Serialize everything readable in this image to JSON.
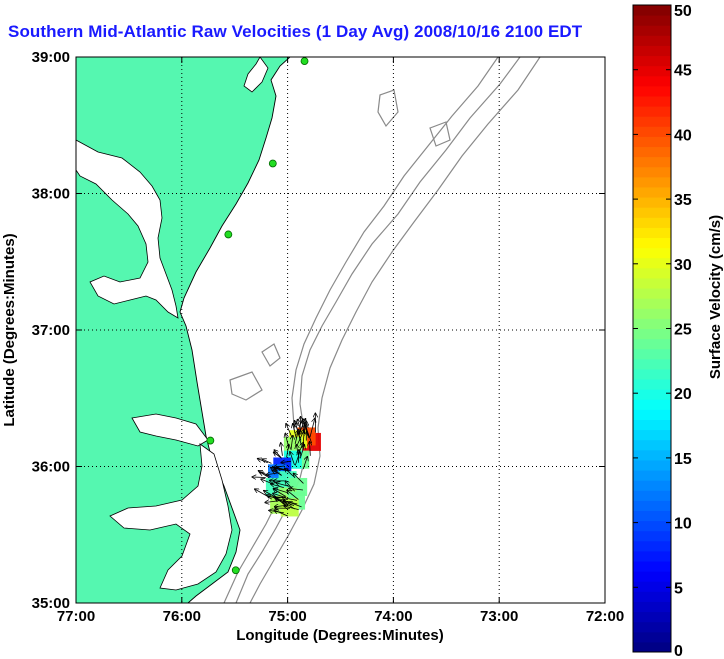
{
  "chart_data": {
    "type": "map-vector-field",
    "title": "Southern Mid-Atlantic Raw Velocities (1 Day Avg) 2008/10/16 2100 EDT",
    "xlabel": "Longitude (Degrees:Minutes)",
    "ylabel": "Latitude (Degrees:Minutes)",
    "x_ticks": [
      "77:00",
      "76:00",
      "75:00",
      "74:00",
      "73:00",
      "72:00"
    ],
    "y_ticks": [
      "39:00",
      "38:00",
      "37:00",
      "36:00",
      "35:00"
    ],
    "xlim": [
      -77,
      -72
    ],
    "ylim": [
      35,
      39
    ],
    "grid": "dotted",
    "colorbar": {
      "label": "Surface Velocity (cm/s)",
      "range": [
        0,
        50
      ],
      "ticks": [
        "50",
        "45",
        "40",
        "35",
        "30",
        "25",
        "20",
        "15",
        "10",
        "5",
        "0"
      ],
      "colormap": "jet"
    },
    "land_color": "#55f7b0",
    "radar_sites": [
      {
        "lon": -74.84,
        "lat": 38.97
      },
      {
        "lon": -75.14,
        "lat": 38.22
      },
      {
        "lon": -75.56,
        "lat": 37.7
      },
      {
        "lon": -75.73,
        "lat": 36.19
      },
      {
        "lon": -75.49,
        "lat": 35.24
      }
    ],
    "velocity_samples": [
      {
        "lon": -74.77,
        "lat": 36.18,
        "speed": 45
      },
      {
        "lon": -74.82,
        "lat": 36.22,
        "speed": 40
      },
      {
        "lon": -74.9,
        "lat": 36.2,
        "speed": 30
      },
      {
        "lon": -74.95,
        "lat": 36.15,
        "speed": 26
      },
      {
        "lon": -74.88,
        "lat": 36.05,
        "speed": 24
      },
      {
        "lon": -74.95,
        "lat": 36.05,
        "speed": 20
      },
      {
        "lon": -75.05,
        "lat": 36.0,
        "speed": 8
      },
      {
        "lon": -75.1,
        "lat": 35.95,
        "speed": 12
      },
      {
        "lon": -75.0,
        "lat": 35.9,
        "speed": 22
      },
      {
        "lon": -74.9,
        "lat": 35.85,
        "speed": 24
      },
      {
        "lon": -75.12,
        "lat": 35.85,
        "speed": 22
      },
      {
        "lon": -75.0,
        "lat": 35.78,
        "speed": 26
      },
      {
        "lon": -74.92,
        "lat": 35.75,
        "speed": 24
      },
      {
        "lon": -75.08,
        "lat": 35.72,
        "speed": 27
      },
      {
        "lon": -74.98,
        "lat": 35.7,
        "speed": 28
      }
    ]
  }
}
